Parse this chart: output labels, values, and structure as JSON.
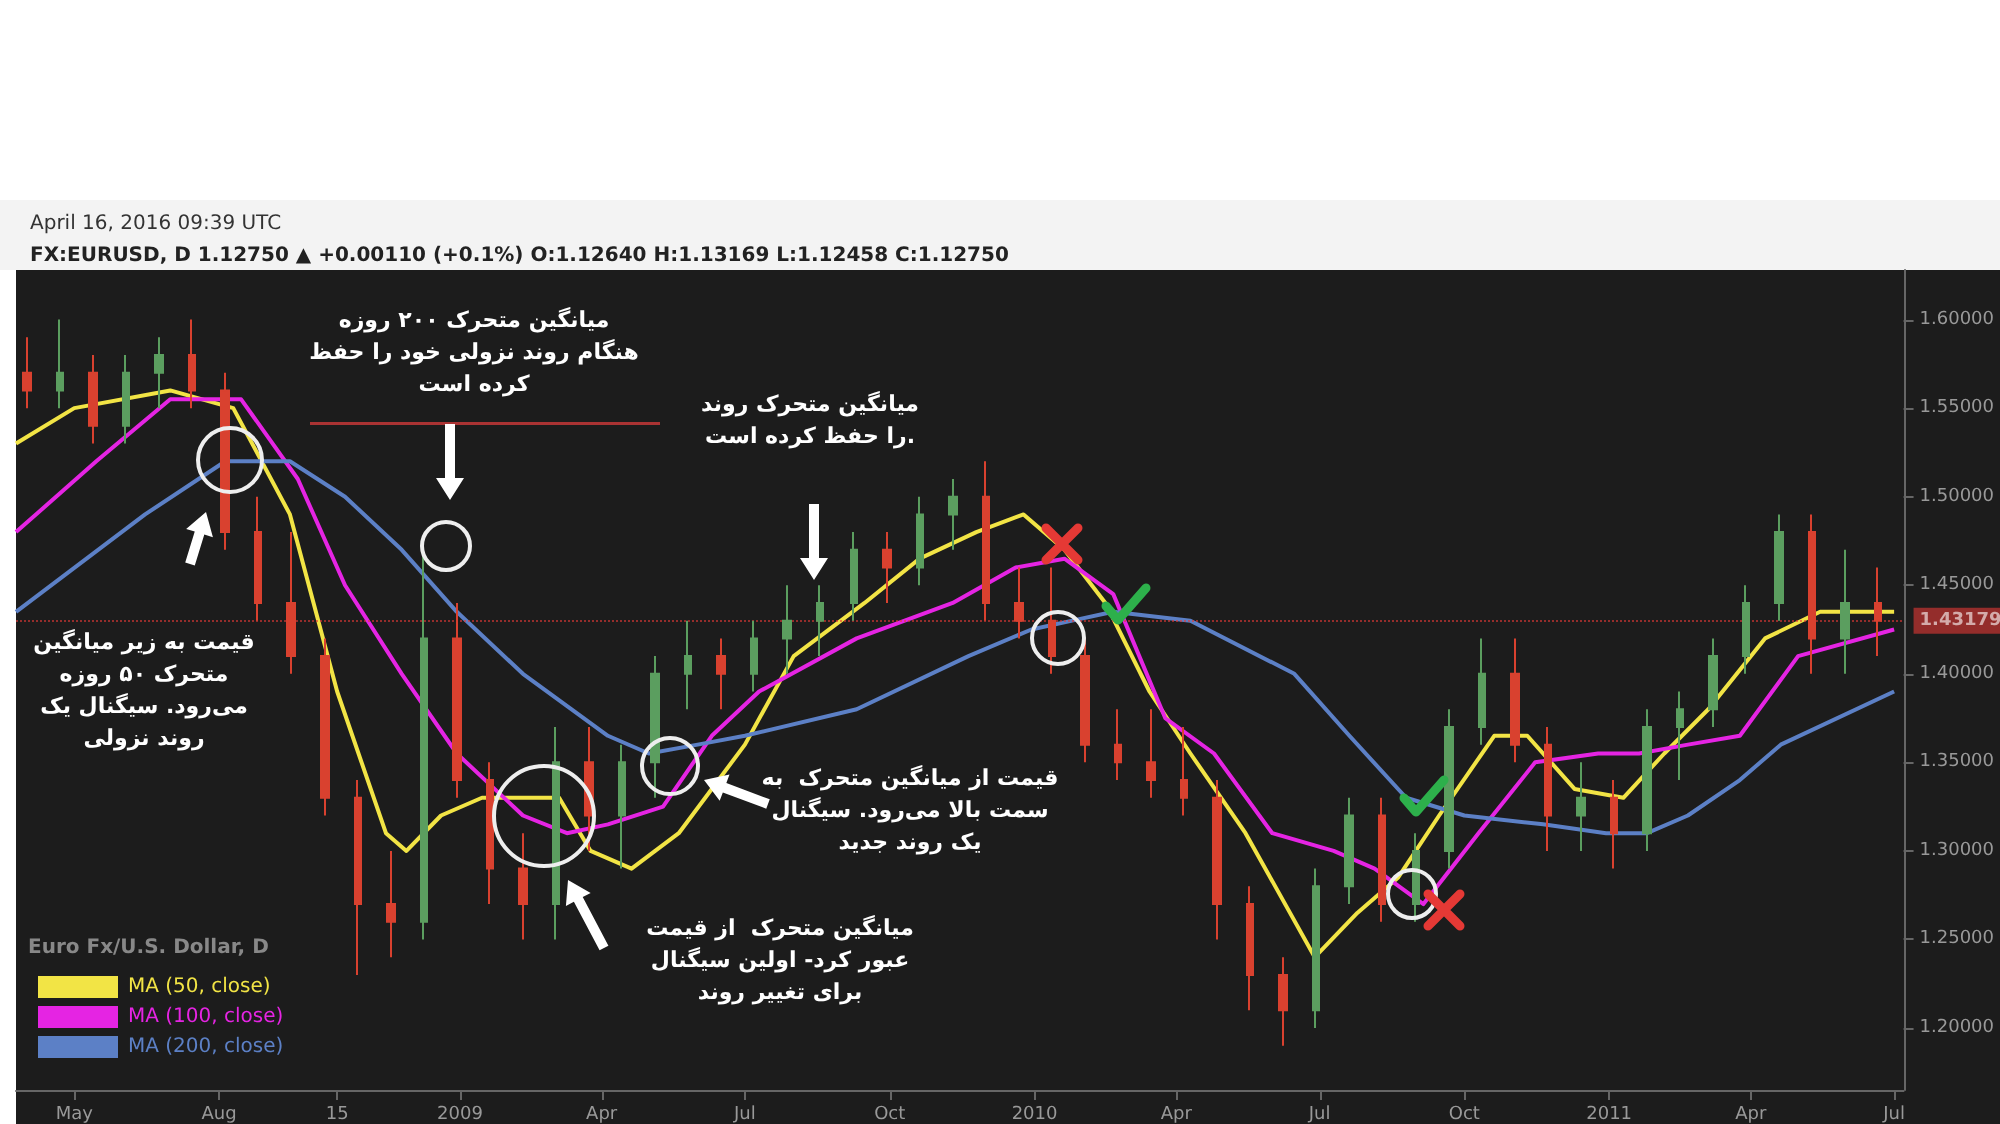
{
  "chart_data": {
    "type": "candlestick",
    "title": "April 16, 2016 09:39 UTC",
    "subtitle": "FX:EURUSD, D 1.12750 ▲ +0.00110 (+0.1%) O:1.12640 H:1.13169 L:1.12458 C:1.12750",
    "legend_title": "Euro Fx/U.S. Dollar, D",
    "legend": "bottom left",
    "grid": false,
    "marker": "none",
    "line_style": "solid",
    "xlim": [
      "2008-03-25",
      "2011-07-07"
    ],
    "xticks": [
      {
        "value": "2008-05-01",
        "label": "May"
      },
      {
        "value": "2008-08-01",
        "label": "Aug"
      },
      {
        "value": "2008-10-15",
        "label": "15"
      },
      {
        "value": "2009-01-01",
        "label": "2009"
      },
      {
        "value": "2009-04-01",
        "label": "Apr"
      },
      {
        "value": "2009-07-01",
        "label": "Jul"
      },
      {
        "value": "2009-10-01",
        "label": "Oct"
      },
      {
        "value": "2010-01-01",
        "label": "2010"
      },
      {
        "value": "2010-04-01",
        "label": "Apr"
      },
      {
        "value": "2010-07-01",
        "label": "Jul"
      },
      {
        "value": "2010-10-01",
        "label": "Oct"
      },
      {
        "value": "2011-01-01",
        "label": "2011"
      },
      {
        "value": "2011-04-01",
        "label": "Apr"
      },
      {
        "value": "2011-07-01",
        "label": "Jul"
      }
    ],
    "ylim": [
      1.165,
      1.628
    ],
    "yticks": [
      {
        "value": 1.2,
        "label": "1.20000"
      },
      {
        "value": 1.25,
        "label": "1.25000"
      },
      {
        "value": 1.3,
        "label": "1.30000"
      },
      {
        "value": 1.35,
        "label": "1.35000"
      },
      {
        "value": 1.4,
        "label": "1.40000"
      },
      {
        "value": 1.45,
        "label": "1.45000"
      },
      {
        "value": 1.5,
        "label": "1.50000"
      },
      {
        "value": 1.55,
        "label": "1.55000"
      },
      {
        "value": 1.6,
        "label": "1.60000"
      }
    ],
    "ref_lines": [
      {
        "axis": "y",
        "value": 1.43179,
        "label": "1.43179",
        "color": "#e53935",
        "line_style": "dotted"
      }
    ],
    "annotations": [
      "میانگین متحرک ۲۰۰ روزه\nهنگام روند نزولی خود را حفظ\nکرده است",
      "میانگین متحرک روند\nرا حفظ کرده است.",
      "قیمت به زیر میانگین\nمتحرک ۵۰ روزه\nمی‌رود. سیگنال یک\nروند نزولی",
      "قیمت از میانگین متحرک  به\nسمت بالا می‌رود. سیگنال\nیک روند جدید",
      "میانگین متحرک  از قیمت\nعبور کرد- اولین سیگنال\nبرای تغییر روند"
    ],
    "series": [
      {
        "x": [
          "2008-04-01",
          "2008-04-22",
          "2008-05-13",
          "2008-06-03",
          "2008-06-24",
          "2008-07-15",
          "2008-08-05",
          "2008-08-26",
          "2008-09-16",
          "2008-10-07",
          "2008-10-28",
          "2008-11-18",
          "2008-12-09",
          "2008-12-30",
          "2009-01-20",
          "2009-02-10",
          "2009-03-03",
          "2009-03-24",
          "2009-04-14",
          "2009-05-05",
          "2009-05-26",
          "2009-06-16",
          "2009-07-07",
          "2009-07-28",
          "2009-08-18",
          "2009-09-08",
          "2009-09-29",
          "2009-10-20",
          "2009-11-10",
          "2009-12-01",
          "2009-12-22",
          "2010-01-12",
          "2010-02-02",
          "2010-02-23",
          "2010-03-16",
          "2010-04-06",
          "2010-04-27",
          "2010-05-18",
          "2010-06-08",
          "2010-06-29",
          "2010-07-20",
          "2010-08-10",
          "2010-08-31",
          "2010-09-21",
          "2010-10-12",
          "2010-11-02",
          "2010-11-23",
          "2010-12-14",
          "2011-01-04",
          "2011-01-25",
          "2011-02-15",
          "2011-03-08",
          "2011-03-29",
          "2011-04-19",
          "2011-05-10",
          "2011-05-31",
          "2011-06-21"
        ],
        "ohlc": [
          [
            1.57,
            1.59,
            1.55,
            1.56
          ],
          [
            1.56,
            1.6,
            1.55,
            1.57
          ],
          [
            1.57,
            1.58,
            1.53,
            1.54
          ],
          [
            1.54,
            1.58,
            1.53,
            1.57
          ],
          [
            1.57,
            1.59,
            1.55,
            1.58
          ],
          [
            1.58,
            1.6,
            1.55,
            1.56
          ],
          [
            1.56,
            1.57,
            1.47,
            1.48
          ],
          [
            1.48,
            1.5,
            1.43,
            1.44
          ],
          [
            1.44,
            1.48,
            1.4,
            1.41
          ],
          [
            1.41,
            1.42,
            1.32,
            1.33
          ],
          [
            1.33,
            1.34,
            1.23,
            1.27
          ],
          [
            1.27,
            1.3,
            1.24,
            1.26
          ],
          [
            1.26,
            1.47,
            1.25,
            1.42
          ],
          [
            1.42,
            1.44,
            1.33,
            1.34
          ],
          [
            1.34,
            1.35,
            1.27,
            1.29
          ],
          [
            1.29,
            1.31,
            1.25,
            1.27
          ],
          [
            1.27,
            1.37,
            1.25,
            1.35
          ],
          [
            1.35,
            1.37,
            1.3,
            1.32
          ],
          [
            1.32,
            1.36,
            1.29,
            1.35
          ],
          [
            1.35,
            1.41,
            1.33,
            1.4
          ],
          [
            1.4,
            1.43,
            1.38,
            1.41
          ],
          [
            1.41,
            1.42,
            1.38,
            1.4
          ],
          [
            1.4,
            1.43,
            1.39,
            1.42
          ],
          [
            1.42,
            1.45,
            1.4,
            1.43
          ],
          [
            1.43,
            1.45,
            1.41,
            1.44
          ],
          [
            1.44,
            1.48,
            1.43,
            1.47
          ],
          [
            1.47,
            1.48,
            1.44,
            1.46
          ],
          [
            1.46,
            1.5,
            1.45,
            1.49
          ],
          [
            1.49,
            1.51,
            1.47,
            1.5
          ],
          [
            1.5,
            1.52,
            1.43,
            1.44
          ],
          [
            1.44,
            1.46,
            1.42,
            1.43
          ],
          [
            1.43,
            1.46,
            1.4,
            1.41
          ],
          [
            1.41,
            1.42,
            1.35,
            1.36
          ],
          [
            1.36,
            1.38,
            1.34,
            1.35
          ],
          [
            1.35,
            1.38,
            1.33,
            1.34
          ],
          [
            1.34,
            1.37,
            1.32,
            1.33
          ],
          [
            1.33,
            1.34,
            1.25,
            1.27
          ],
          [
            1.27,
            1.28,
            1.21,
            1.23
          ],
          [
            1.23,
            1.24,
            1.19,
            1.21
          ],
          [
            1.21,
            1.29,
            1.2,
            1.28
          ],
          [
            1.28,
            1.33,
            1.27,
            1.32
          ],
          [
            1.32,
            1.33,
            1.26,
            1.27
          ],
          [
            1.27,
            1.31,
            1.26,
            1.3
          ],
          [
            1.3,
            1.38,
            1.29,
            1.37
          ],
          [
            1.37,
            1.42,
            1.36,
            1.4
          ],
          [
            1.4,
            1.42,
            1.35,
            1.36
          ],
          [
            1.36,
            1.37,
            1.3,
            1.32
          ],
          [
            1.32,
            1.35,
            1.3,
            1.33
          ],
          [
            1.33,
            1.34,
            1.29,
            1.31
          ],
          [
            1.31,
            1.38,
            1.3,
            1.37
          ],
          [
            1.37,
            1.39,
            1.34,
            1.38
          ],
          [
            1.38,
            1.42,
            1.37,
            1.41
          ],
          [
            1.41,
            1.45,
            1.4,
            1.44
          ],
          [
            1.44,
            1.49,
            1.43,
            1.48
          ],
          [
            1.48,
            1.49,
            1.4,
            1.42
          ],
          [
            1.42,
            1.47,
            1.4,
            1.44
          ],
          [
            1.44,
            1.46,
            1.41,
            1.43
          ]
        ],
        "colors": [
          "#d9412f",
          "#5b9e5f",
          "#d9412f",
          "#5b9e5f",
          "#5b9e5f",
          "#d9412f",
          "#d9412f",
          "#d9412f",
          "#d9412f",
          "#d9412f",
          "#d9412f",
          "#d9412f",
          "#5b9e5f",
          "#d9412f",
          "#d9412f",
          "#d9412f",
          "#5b9e5f",
          "#d9412f",
          "#5b9e5f",
          "#5b9e5f",
          "#5b9e5f",
          "#d9412f",
          "#5b9e5f",
          "#5b9e5f",
          "#5b9e5f",
          "#5b9e5f",
          "#d9412f",
          "#5b9e5f",
          "#5b9e5f",
          "#d9412f",
          "#d9412f",
          "#d9412f",
          "#d9412f",
          "#d9412f",
          "#d9412f",
          "#d9412f",
          "#d9412f",
          "#d9412f",
          "#d9412f",
          "#5b9e5f",
          "#5b9e5f",
          "#d9412f",
          "#5b9e5f",
          "#5b9e5f",
          "#5b9e5f",
          "#d9412f",
          "#d9412f",
          "#5b9e5f",
          "#d9412f",
          "#5b9e5f",
          "#5b9e5f",
          "#5b9e5f",
          "#5b9e5f",
          "#5b9e5f",
          "#d9412f",
          "#5b9e5f",
          "#d9412f"
        ]
      },
      {
        "type": "line",
        "name": "MA (50, close)",
        "color": "#f2e445",
        "x": [
          "2008-03-25",
          "2008-05-01",
          "2008-07-01",
          "2008-08-10",
          "2008-09-15",
          "2008-10-15",
          "2008-11-15",
          "2008-11-28",
          "2008-12-20",
          "2009-01-15",
          "2009-02-10",
          "2009-03-05",
          "2009-03-25",
          "2009-04-20",
          "2009-05-20",
          "2009-07-01",
          "2009-08-01",
          "2009-09-15",
          "2009-10-20",
          "2009-11-25",
          "2009-12-25",
          "2010-01-20",
          "2010-02-15",
          "2010-03-15",
          "2010-04-10",
          "2010-05-15",
          "2010-06-28",
          "2010-07-25",
          "2010-08-20",
          "2010-09-15",
          "2010-10-20",
          "2010-11-10",
          "2010-12-10",
          "2011-01-10",
          "2011-02-05",
          "2011-03-05",
          "2011-04-10",
          "2011-05-15",
          "2011-07-01"
        ],
        "values": [
          1.53,
          1.55,
          1.56,
          1.55,
          1.49,
          1.39,
          1.31,
          1.3,
          1.32,
          1.33,
          1.33,
          1.33,
          1.3,
          1.29,
          1.31,
          1.36,
          1.41,
          1.44,
          1.465,
          1.48,
          1.49,
          1.47,
          1.44,
          1.39,
          1.355,
          1.31,
          1.24,
          1.265,
          1.285,
          1.32,
          1.365,
          1.365,
          1.335,
          1.33,
          1.355,
          1.38,
          1.42,
          1.435,
          1.435
        ]
      },
      {
        "type": "line",
        "name": "MA (100, close)",
        "color": "#e524e3",
        "x": [
          "2008-03-25",
          "2008-05-15",
          "2008-07-01",
          "2008-08-15",
          "2008-09-20",
          "2008-10-20",
          "2008-11-25",
          "2008-12-30",
          "2009-02-10",
          "2009-03-10",
          "2009-04-05",
          "2009-05-10",
          "2009-06-10",
          "2009-07-10",
          "2009-09-10",
          "2009-11-10",
          "2009-12-20",
          "2010-01-20",
          "2010-02-20",
          "2010-03-25",
          "2010-04-25",
          "2010-06-01",
          "2010-07-10",
          "2010-08-05",
          "2010-09-05",
          "2010-10-10",
          "2010-11-15",
          "2010-12-25",
          "2011-01-20",
          "2011-02-20",
          "2011-03-25",
          "2011-05-01",
          "2011-07-01"
        ],
        "values": [
          1.48,
          1.52,
          1.555,
          1.555,
          1.51,
          1.45,
          1.4,
          1.355,
          1.32,
          1.31,
          1.315,
          1.325,
          1.365,
          1.39,
          1.42,
          1.44,
          1.46,
          1.465,
          1.445,
          1.375,
          1.355,
          1.31,
          1.3,
          1.29,
          1.27,
          1.31,
          1.35,
          1.355,
          1.355,
          1.36,
          1.365,
          1.41,
          1.425
        ]
      },
      {
        "type": "line",
        "name": "MA (200, close)",
        "color": "#5c80c6",
        "x": [
          "2008-03-25",
          "2008-06-15",
          "2008-08-05",
          "2008-09-15",
          "2008-10-20",
          "2008-11-25",
          "2008-12-30",
          "2009-02-10",
          "2009-04-05",
          "2009-05-01",
          "2009-06-01",
          "2009-07-01",
          "2009-09-10",
          "2009-11-20",
          "2009-12-30",
          "2010-01-25",
          "2010-02-20",
          "2010-04-10",
          "2010-06-15",
          "2010-07-20",
          "2010-08-25",
          "2010-10-01",
          "2010-11-20",
          "2010-12-30",
          "2011-01-25",
          "2011-02-20",
          "2011-03-25",
          "2011-04-20",
          "2011-07-01"
        ],
        "values": [
          1.435,
          1.49,
          1.52,
          1.52,
          1.5,
          1.47,
          1.435,
          1.4,
          1.365,
          1.355,
          1.36,
          1.365,
          1.38,
          1.41,
          1.425,
          1.43,
          1.435,
          1.43,
          1.4,
          1.365,
          1.33,
          1.32,
          1.315,
          1.31,
          1.31,
          1.32,
          1.34,
          1.36,
          1.39
        ]
      }
    ]
  }
}
